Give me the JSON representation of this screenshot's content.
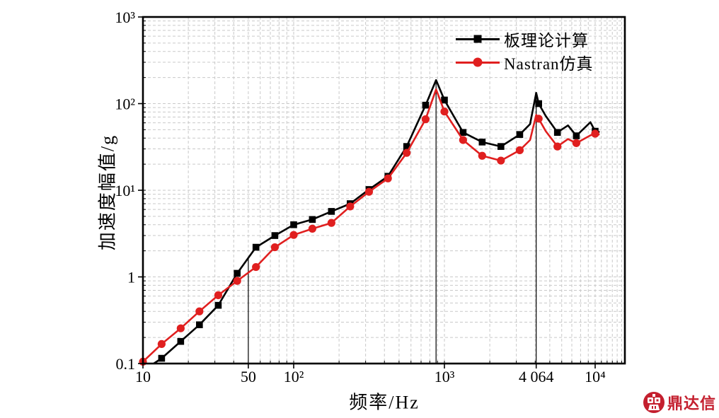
{
  "page": {
    "background": "#ffffff"
  },
  "chart_data": {
    "type": "line",
    "title": "",
    "xlabel": "频率/Hz",
    "ylabel": "加速度幅值/g",
    "xscale": "log",
    "yscale": "log",
    "xlim": [
      10,
      15700
    ],
    "ylim": [
      0.1,
      1000
    ],
    "grid": {
      "show": true,
      "style": "dashed",
      "color": "#c9c9c9",
      "minor": true
    },
    "legend_position": "top-right-inside",
    "x_ticks": [
      {
        "value": 10,
        "label": "10"
      },
      {
        "value": 50,
        "label": "50"
      },
      {
        "value": 100,
        "label": "10²"
      },
      {
        "value": 1000,
        "label": "10³"
      },
      {
        "value": 4064,
        "label": "4 064"
      },
      {
        "value": 10000,
        "label": "10⁴"
      }
    ],
    "y_ticks": [
      {
        "value": 0.1,
        "label": "0.1"
      },
      {
        "value": 1,
        "label": "1"
      },
      {
        "value": 10,
        "label": "10¹"
      },
      {
        "value": 100,
        "label": "10²"
      },
      {
        "value": 1000,
        "label": "10³"
      }
    ],
    "series": [
      {
        "name": "板理论计算",
        "color": "#000000",
        "marker": "square",
        "points": [
          [
            11.8,
            0.1,
            0
          ],
          [
            13.3,
            0.115,
            1
          ],
          [
            17.8,
            0.18,
            1
          ],
          [
            23.7,
            0.28,
            1
          ],
          [
            31.6,
            0.47,
            1
          ],
          [
            42.2,
            1.1,
            1
          ],
          [
            56.2,
            2.2,
            1
          ],
          [
            75,
            3.0,
            1
          ],
          [
            100,
            4.0,
            1
          ],
          [
            133,
            4.6,
            1
          ],
          [
            178,
            5.7,
            1
          ],
          [
            237,
            7.0,
            1
          ],
          [
            316,
            10.2,
            1
          ],
          [
            422,
            14.5,
            1
          ],
          [
            562,
            32,
            1
          ],
          [
            750,
            96,
            1
          ],
          [
            880,
            187,
            0
          ],
          [
            1000,
            110,
            1
          ],
          [
            1330,
            46.5,
            1
          ],
          [
            1780,
            36,
            1
          ],
          [
            2370,
            32,
            1
          ],
          [
            3160,
            44,
            1
          ],
          [
            3700,
            58,
            0
          ],
          [
            4064,
            133,
            0
          ],
          [
            4220,
            100,
            1
          ],
          [
            4700,
            72,
            0
          ],
          [
            5620,
            46.5,
            1
          ],
          [
            6600,
            56,
            0
          ],
          [
            7500,
            42.5,
            1
          ],
          [
            9300,
            61,
            0
          ],
          [
            10000,
            48,
            1
          ],
          [
            10700,
            47,
            0
          ]
        ]
      },
      {
        "name": "Nastran仿真",
        "color": "#e01f1f",
        "marker": "circle",
        "points": [
          [
            10,
            0.105,
            1
          ],
          [
            13.3,
            0.168,
            1
          ],
          [
            17.8,
            0.255,
            1
          ],
          [
            23.7,
            0.4,
            1
          ],
          [
            31.6,
            0.615,
            1
          ],
          [
            42.2,
            0.9,
            1
          ],
          [
            56.2,
            1.3,
            1
          ],
          [
            75,
            2.2,
            1
          ],
          [
            100,
            3.05,
            1
          ],
          [
            133,
            3.6,
            1
          ],
          [
            178,
            4.2,
            1
          ],
          [
            237,
            6.5,
            1
          ],
          [
            316,
            9.6,
            1
          ],
          [
            422,
            13.7,
            1
          ],
          [
            562,
            27,
            1
          ],
          [
            750,
            66,
            1
          ],
          [
            880,
            146,
            0
          ],
          [
            1000,
            81,
            1
          ],
          [
            1330,
            38,
            1
          ],
          [
            1780,
            25,
            1
          ],
          [
            2370,
            22,
            1
          ],
          [
            3160,
            29,
            1
          ],
          [
            3700,
            38,
            0
          ],
          [
            4064,
            74,
            0
          ],
          [
            4220,
            67,
            1
          ],
          [
            4700,
            48,
            0
          ],
          [
            5620,
            32,
            1
          ],
          [
            6600,
            39,
            0
          ],
          [
            7500,
            35,
            1
          ],
          [
            9300,
            43,
            0
          ],
          [
            10000,
            45,
            1
          ],
          [
            10700,
            44,
            0
          ]
        ]
      }
    ],
    "annotation_lines": [
      {
        "x": 50,
        "y_from": 0.1,
        "y_to": 1.7
      },
      {
        "x": 880,
        "y_from": 0.1,
        "y_to": 187
      },
      {
        "x": 4064,
        "y_from": 0.1,
        "y_to": 133
      }
    ]
  },
  "watermark": {
    "text": "鼎达信",
    "color": "#c41f2e",
    "icon": "dingdaxin-logo"
  }
}
